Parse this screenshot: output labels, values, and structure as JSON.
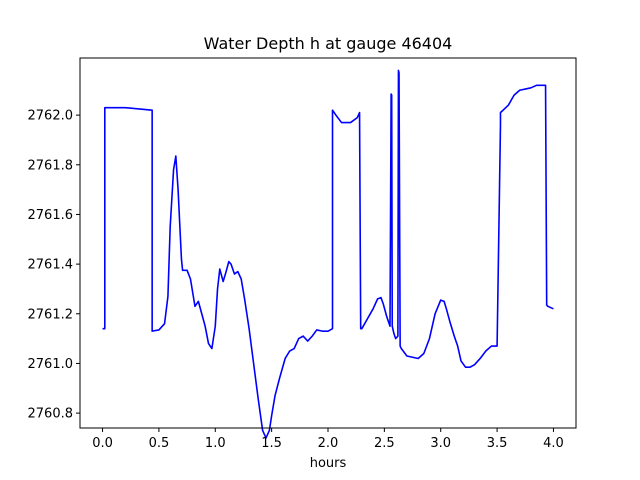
{
  "chart_data": {
    "type": "line",
    "title": "Water Depth h at gauge 46404",
    "xlabel": "hours",
    "ylabel": "",
    "xlim": [
      -0.2,
      4.2
    ],
    "ylim": [
      2760.74,
      2762.23
    ],
    "x_ticks": [
      0.0,
      0.5,
      1.0,
      1.5,
      2.0,
      2.5,
      3.0,
      3.5,
      4.0
    ],
    "x_tick_labels": [
      "0.0",
      "0.5",
      "1.0",
      "1.5",
      "2.0",
      "2.5",
      "3.0",
      "3.5",
      "4.0"
    ],
    "y_ticks": [
      2760.8,
      2761.0,
      2761.2,
      2761.4,
      2761.6,
      2761.8,
      2762.0
    ],
    "y_tick_labels": [
      "2760.8",
      "2761.0",
      "2761.2",
      "2761.4",
      "2761.6",
      "2761.8",
      "2762.0"
    ],
    "grid": false,
    "series": [
      {
        "color": "#0000ff",
        "x": [
          0.0,
          0.02,
          0.02,
          0.2,
          0.44,
          0.44,
          0.5,
          0.55,
          0.58,
          0.6,
          0.63,
          0.65,
          0.67,
          0.7,
          0.71,
          0.75,
          0.78,
          0.82,
          0.85,
          0.88,
          0.91,
          0.94,
          0.97,
          1.0,
          1.02,
          1.04,
          1.07,
          1.09,
          1.12,
          1.14,
          1.17,
          1.2,
          1.23,
          1.26,
          1.3,
          1.34,
          1.38,
          1.42,
          1.45,
          1.48,
          1.5,
          1.53,
          1.57,
          1.62,
          1.66,
          1.7,
          1.74,
          1.78,
          1.82,
          1.86,
          1.9,
          1.95,
          2.0,
          2.04,
          2.04,
          2.07,
          2.12,
          2.2,
          2.26,
          2.28,
          2.29,
          2.3,
          2.35,
          2.4,
          2.44,
          2.47,
          2.49,
          2.52,
          2.55,
          2.56,
          2.565,
          2.57,
          2.585,
          2.6,
          2.62,
          2.625,
          2.63,
          2.64,
          2.645,
          2.65,
          2.7,
          2.75,
          2.8,
          2.85,
          2.9,
          2.95,
          3.0,
          3.03,
          3.05,
          3.08,
          3.12,
          3.15,
          3.18,
          3.22,
          3.26,
          3.3,
          3.35,
          3.4,
          3.45,
          3.5,
          3.53,
          3.53,
          3.6,
          3.65,
          3.7,
          3.75,
          3.8,
          3.85,
          3.9,
          3.93,
          3.94,
          3.95,
          4.0
        ],
        "y": [
          2761.14,
          2761.14,
          2762.03,
          2762.03,
          2762.02,
          2761.13,
          2761.135,
          2761.16,
          2761.27,
          2761.55,
          2761.78,
          2761.835,
          2761.7,
          2761.42,
          2761.375,
          2761.375,
          2761.34,
          2761.23,
          2761.25,
          2761.2,
          2761.15,
          2761.08,
          2761.06,
          2761.15,
          2761.3,
          2761.38,
          2761.33,
          2761.36,
          2761.41,
          2761.4,
          2761.36,
          2761.37,
          2761.34,
          2761.26,
          2761.14,
          2761.0,
          2760.86,
          2760.73,
          2760.7,
          2760.73,
          2760.79,
          2760.87,
          2760.94,
          2761.02,
          2761.05,
          2761.06,
          2761.1,
          2761.11,
          2761.09,
          2761.11,
          2761.135,
          2761.13,
          2761.13,
          2761.14,
          2762.02,
          2762.0,
          2761.97,
          2761.97,
          2761.99,
          2762.01,
          2761.14,
          2761.14,
          2761.18,
          2761.22,
          2761.26,
          2761.265,
          2761.24,
          2761.19,
          2761.15,
          2762.085,
          2762.08,
          2761.15,
          2761.12,
          2761.1,
          2761.11,
          2762.18,
          2762.17,
          2761.07,
          2761.065,
          2761.06,
          2761.03,
          2761.025,
          2761.02,
          2761.04,
          2761.1,
          2761.2,
          2761.255,
          2761.25,
          2761.22,
          2761.17,
          2761.11,
          2761.07,
          2761.01,
          2760.985,
          2760.985,
          2760.995,
          2761.02,
          2761.05,
          2761.07,
          2761.07,
          2761.96,
          2762.01,
          2762.04,
          2762.08,
          2762.1,
          2762.105,
          2762.11,
          2762.12,
          2762.12,
          2762.12,
          2761.235,
          2761.23,
          2761.22
        ]
      }
    ]
  }
}
